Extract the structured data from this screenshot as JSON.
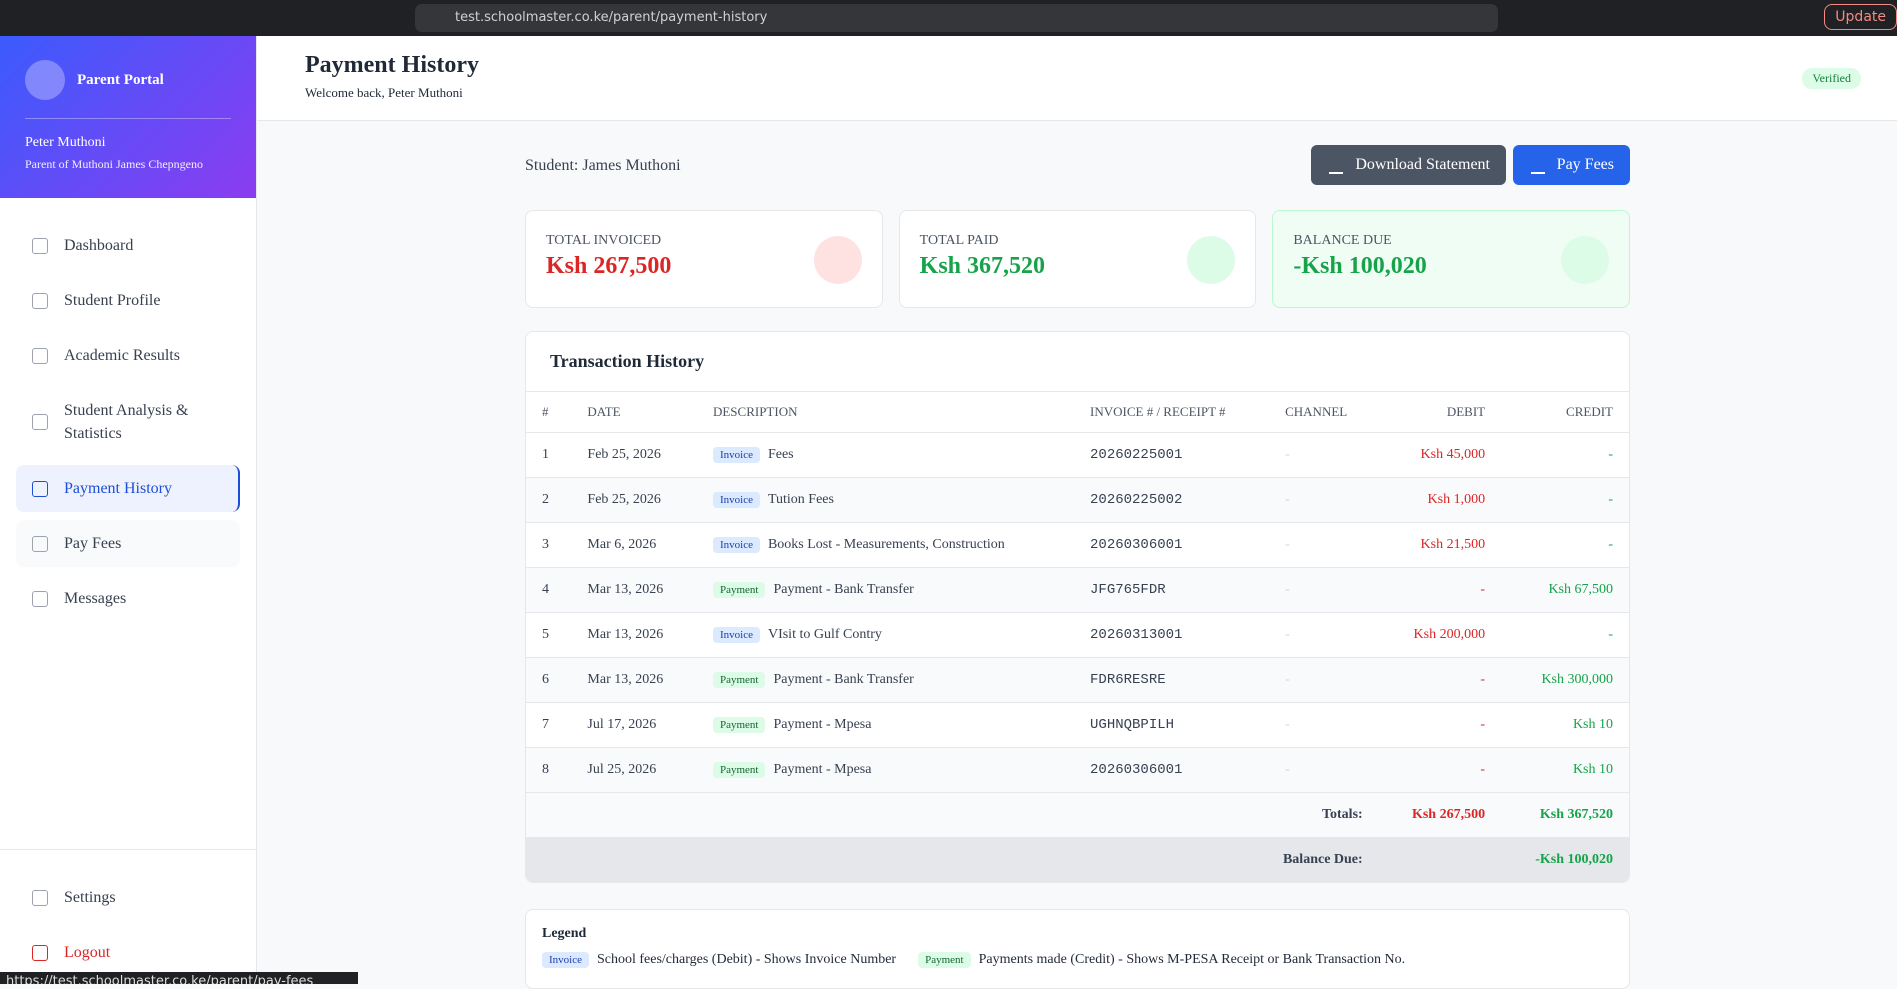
{
  "browser": {
    "url": "test.schoolmaster.co.ke/parent/payment-history",
    "update_button": "Update"
  },
  "sidebar": {
    "portal_title": "Parent Portal",
    "user_name": "Peter Muthoni",
    "user_role": "Parent of Muthoni James Chepngeno",
    "nav": [
      "Dashboard",
      "Student Profile",
      "Academic Results",
      "Student Analysis & Statistics",
      "Payment History",
      "Pay Fees",
      "Messages"
    ],
    "settings": "Settings",
    "logout": "Logout"
  },
  "header": {
    "title": "Payment History",
    "welcome": "Welcome back, Peter Muthoni",
    "badge": "Verified"
  },
  "student": "Student: James Muthoni",
  "actions": [
    "Download Statement",
    "Pay Fees"
  ],
  "summary": [
    {
      "label": "TOTAL INVOICED",
      "value": "Ksh 267,500"
    },
    {
      "label": "TOTAL PAID",
      "value": "Ksh 367,520"
    },
    {
      "label": "BALANCE DUE",
      "value": "-Ksh 100,020"
    }
  ],
  "transactions": {
    "title": "Transaction History",
    "columns": [
      "#",
      "DATE",
      "DESCRIPTION",
      "INVOICE # / RECEIPT #",
      "CHANNEL",
      "DEBIT",
      "CREDIT"
    ],
    "rows": [
      [
        1,
        "Feb 25, 2026",
        "Invoice",
        "Fees",
        "20260225001",
        "-",
        "Ksh 45,000",
        "-"
      ],
      [
        2,
        "Feb 25, 2026",
        "Invoice",
        "Tution Fees",
        "20260225002",
        "-",
        "Ksh 1,000",
        "-"
      ],
      [
        3,
        "Mar 6, 2026",
        "Invoice",
        "Books Lost - Measurements, Construction",
        "20260306001",
        "-",
        "Ksh 21,500",
        "-"
      ],
      [
        4,
        "Mar 13, 2026",
        "Payment",
        "Payment - Bank Transfer",
        "JFG765FDR",
        "-",
        "-",
        "Ksh 67,500"
      ],
      [
        5,
        "Mar 13, 2026",
        "Invoice",
        "VIsit to Gulf Contry",
        "20260313001",
        "-",
        "Ksh 200,000",
        "-"
      ],
      [
        6,
        "Mar 13, 2026",
        "Payment",
        "Payment - Bank Transfer",
        "FDR6RESRE",
        "-",
        "-",
        "Ksh 300,000"
      ],
      [
        7,
        "Jul 17, 2026",
        "Payment",
        "Payment - Mpesa",
        "UGHNQBPILH",
        "-",
        "-",
        "Ksh 10"
      ],
      [
        8,
        "Jul 25, 2026",
        "Payment",
        "Payment - Mpesa",
        "20260306001",
        "-",
        "-",
        "Ksh 10"
      ]
    ],
    "totals_label": "Totals:",
    "total_debit": "Ksh 267,500",
    "total_credit": "Ksh 367,520",
    "balance_label": "Balance Due:",
    "balance": "-Ksh 100,020"
  },
  "legend": {
    "title": "Legend",
    "items": [
      {
        "tag": "Invoice",
        "text": "School fees/charges (Debit) - Shows Invoice Number"
      },
      {
        "tag": "Payment",
        "text": "Payments made (Credit) - Shows M-PESA Receipt or Bank Transaction No."
      }
    ]
  },
  "status_url": "https://test.schoolmaster.co.ke/parent/pay-fees"
}
